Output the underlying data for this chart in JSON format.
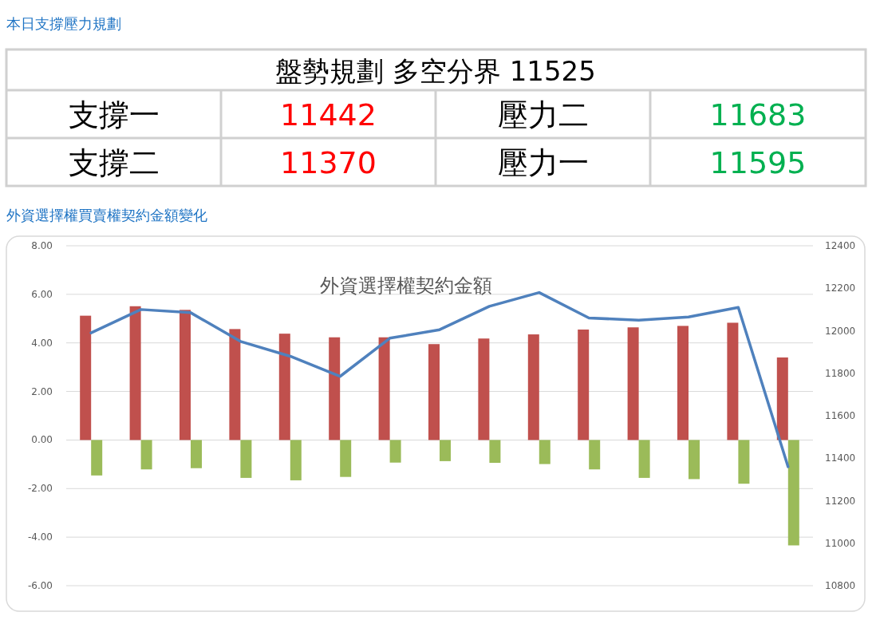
{
  "chart_data": [
    {
      "type": "other",
      "title": "本日支撐壓力規劃",
      "annotations": [
        "盤勢規劃 多空分界 11525",
        "支撐一",
        "11442",
        "壓力二",
        "11683",
        "支撐二",
        "11370",
        "壓力一",
        "11595"
      ]
    },
    {
      "type": "bar",
      "title": "外資選擇權買賣權契約金額變化",
      "subtitle": "外資選擇權契約金額",
      "categories": [
        null,
        null,
        null,
        null,
        null,
        null,
        null,
        null,
        null,
        null,
        null,
        null,
        null,
        null,
        null
      ],
      "series": [
        {
          "color": "#c0504d",
          "values": [
            5.12,
            5.51,
            5.36,
            4.57,
            4.38,
            4.23,
            4.23,
            3.95,
            4.18,
            4.35,
            4.55,
            4.64,
            4.7,
            4.83,
            3.4
          ]
        },
        {
          "color": "#9bbb59",
          "values": [
            -1.46,
            -1.21,
            -1.16,
            -1.56,
            -1.66,
            -1.52,
            -0.93,
            -0.87,
            -0.94,
            -0.99,
            -1.21,
            -1.56,
            -1.61,
            -1.8,
            -4.34
          ]
        },
        {
          "type": "line",
          "axis": "y2",
          "color": "#4f81bd",
          "values": [
            11990,
            12100,
            12085,
            11950,
            11880,
            11785,
            11965,
            12005,
            12115,
            12180,
            12060,
            12050,
            12065,
            12110,
            11360
          ]
        }
      ],
      "ylim": [
        -6,
        8
      ],
      "yticks": [
        {
          "value": -6,
          "label": "-6.00"
        },
        {
          "value": -4,
          "label": "-4.00"
        },
        {
          "value": -2,
          "label": "-2.00"
        },
        {
          "value": 0,
          "label": "0.00"
        },
        {
          "value": 2,
          "label": "2.00"
        },
        {
          "value": 4,
          "label": "4.00"
        },
        {
          "value": 6,
          "label": "6.00"
        },
        {
          "value": 8,
          "label": "8.00"
        }
      ],
      "y2lim": [
        10800,
        12400
      ],
      "y2ticks": [
        10800,
        11000,
        11200,
        11400,
        11600,
        11800,
        12000,
        12200,
        12400
      ],
      "grid": "y",
      "tick_labels": "y"
    }
  ]
}
